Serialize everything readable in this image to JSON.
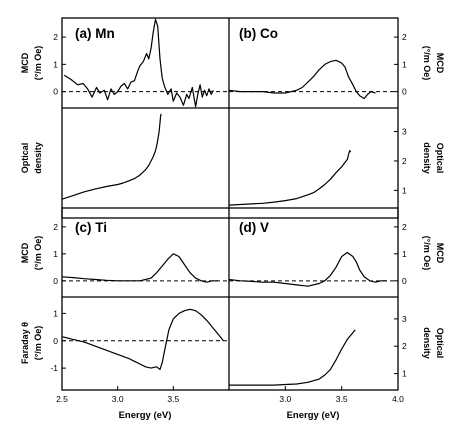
{
  "chart_data": {
    "type": "line",
    "x_axis": {
      "label": "Energy (eV)",
      "left_range": [
        2.5,
        4.0
      ],
      "right_range": [
        2.5,
        4.0
      ],
      "left_ticks": [
        "2.5",
        "3.0",
        "3.5"
      ],
      "right_ticks": [
        "3.0",
        "3.5",
        "4.0"
      ]
    },
    "panels": [
      {
        "id": "a",
        "title": "(a) Mn",
        "mcd": {
          "ylabel": [
            "MCD",
            "(°/m Oe)"
          ],
          "ylim": [
            -0.6,
            2.7
          ],
          "yticks": [
            "0",
            "1",
            "2"
          ],
          "x": [
            2.52,
            2.58,
            2.64,
            2.69,
            2.73,
            2.77,
            2.81,
            2.84,
            2.88,
            2.91,
            2.94,
            2.97,
            3.0,
            3.03,
            3.06,
            3.09,
            3.12,
            3.15,
            3.18,
            3.2,
            3.23,
            3.26,
            3.28,
            3.3,
            3.32,
            3.34,
            3.36,
            3.38,
            3.4,
            3.42,
            3.45,
            3.48,
            3.5,
            3.53,
            3.56,
            3.59,
            3.62,
            3.64,
            3.67,
            3.7,
            3.72,
            3.74,
            3.76,
            3.78,
            3.8,
            3.82,
            3.84,
            3.86
          ],
          "y": [
            0.6,
            0.45,
            0.25,
            0.3,
            0.1,
            -0.2,
            0.15,
            -0.05,
            0.05,
            -0.3,
            0.1,
            -0.1,
            0.0,
            0.2,
            0.3,
            0.1,
            0.35,
            0.4,
            0.75,
            0.95,
            1.1,
            1.4,
            1.2,
            1.6,
            2.2,
            2.65,
            2.4,
            1.2,
            0.5,
            0.2,
            -0.1,
            0.1,
            -0.35,
            -0.05,
            -0.2,
            -0.5,
            -0.1,
            -0.25,
            0.15,
            -0.55,
            -0.1,
            0.25,
            -0.2,
            0.05,
            -0.15,
            0.1,
            -0.1,
            0.05
          ],
          "baseline": 0
        },
        "optical": {
          "ylabel": [
            "Optical",
            "density"
          ],
          "ylim": [
            0.4,
            3.8
          ],
          "yticks": [],
          "x": [
            2.5,
            2.6,
            2.7,
            2.8,
            2.9,
            3.0,
            3.05,
            3.1,
            3.15,
            3.2,
            3.25,
            3.28,
            3.3,
            3.32,
            3.34,
            3.35,
            3.36,
            3.37,
            3.375,
            3.38,
            3.385,
            3.39
          ],
          "y": [
            0.7,
            0.82,
            0.95,
            1.05,
            1.13,
            1.2,
            1.25,
            1.32,
            1.4,
            1.52,
            1.7,
            1.85,
            2.0,
            2.15,
            2.35,
            2.5,
            2.7,
            2.95,
            3.1,
            3.3,
            3.5,
            3.6
          ]
        }
      },
      {
        "id": "b",
        "title": "(b) Co",
        "mcd": {
          "ylabel": [
            "MCD",
            "(°/m Oe)"
          ],
          "ylim": [
            -0.6,
            2.7
          ],
          "yticks": [
            "0",
            "1",
            "2"
          ],
          "x": [
            2.5,
            2.6,
            2.7,
            2.8,
            2.9,
            3.0,
            3.1,
            3.15,
            3.2,
            3.25,
            3.3,
            3.35,
            3.4,
            3.45,
            3.5,
            3.53,
            3.56,
            3.6,
            3.63,
            3.66,
            3.7,
            3.73,
            3.76,
            3.8
          ],
          "y": [
            0.05,
            0.0,
            0.0,
            0.0,
            -0.05,
            -0.05,
            0.05,
            0.15,
            0.35,
            0.55,
            0.8,
            1.0,
            1.1,
            1.15,
            1.05,
            0.9,
            0.55,
            0.25,
            0.0,
            -0.15,
            -0.25,
            -0.1,
            0.0,
            -0.05
          ],
          "baseline": 0
        },
        "optical": {
          "ylabel": [
            "Optical",
            "density"
          ],
          "ylim": [
            0.4,
            3.8
          ],
          "yticks": [
            "1",
            "2",
            "3"
          ],
          "x": [
            2.5,
            2.6,
            2.7,
            2.8,
            2.9,
            3.0,
            3.1,
            3.2,
            3.25,
            3.3,
            3.35,
            3.4,
            3.45,
            3.5,
            3.53,
            3.55,
            3.56,
            3.57,
            3.58
          ],
          "y": [
            0.5,
            0.52,
            0.54,
            0.56,
            0.6,
            0.65,
            0.72,
            0.85,
            0.92,
            1.05,
            1.2,
            1.38,
            1.6,
            1.8,
            1.95,
            2.05,
            2.2,
            2.35,
            2.3
          ]
        }
      },
      {
        "id": "c",
        "title": "(c) Ti",
        "mcd": {
          "ylabel": [
            "MCD",
            "(°/m Oe)"
          ],
          "ylim": [
            -0.6,
            2.7
          ],
          "yticks": [
            "0",
            "1",
            "2"
          ],
          "x": [
            2.5,
            2.6,
            2.7,
            2.8,
            2.9,
            3.0,
            3.1,
            3.2,
            3.25,
            3.3,
            3.35,
            3.4,
            3.45,
            3.5,
            3.55,
            3.6,
            3.65,
            3.7,
            3.75,
            3.8,
            3.85,
            3.9
          ],
          "y": [
            0.15,
            0.12,
            0.08,
            0.05,
            0.02,
            0.0,
            0.0,
            0.0,
            0.05,
            0.1,
            0.3,
            0.55,
            0.8,
            1.0,
            0.9,
            0.6,
            0.3,
            0.1,
            0.0,
            -0.05,
            0.0,
            0.0
          ],
          "baseline": 0
        },
        "optical": {
          "ylabel": [
            "Faraday θ",
            "(°/m Oe)"
          ],
          "ylim": [
            -1.8,
            1.6
          ],
          "yticks": [
            "1",
            "0",
            "-1"
          ],
          "x": [
            2.5,
            2.6,
            2.7,
            2.8,
            2.9,
            3.0,
            3.1,
            3.15,
            3.2,
            3.25,
            3.3,
            3.35,
            3.38,
            3.4,
            3.43,
            3.46,
            3.5,
            3.55,
            3.6,
            3.65,
            3.7,
            3.75,
            3.8,
            3.85,
            3.9,
            3.95
          ],
          "y": [
            0.15,
            0.05,
            -0.05,
            -0.2,
            -0.35,
            -0.5,
            -0.65,
            -0.75,
            -0.85,
            -0.95,
            -1.0,
            -0.95,
            -1.05,
            -0.8,
            -0.2,
            0.4,
            0.8,
            1.0,
            1.1,
            1.15,
            1.1,
            0.95,
            0.75,
            0.5,
            0.25,
            0.0
          ],
          "baseline": 0
        }
      },
      {
        "id": "d",
        "title": "(d) V",
        "mcd": {
          "ylabel": [
            "MCD",
            "(°/m Oe)"
          ],
          "ylim": [
            -0.6,
            2.7
          ],
          "yticks": [
            "0",
            "1",
            "2"
          ],
          "x": [
            2.5,
            2.6,
            2.7,
            2.8,
            2.9,
            3.0,
            3.1,
            3.2,
            3.3,
            3.35,
            3.4,
            3.45,
            3.5,
            3.55,
            3.6,
            3.63,
            3.66,
            3.7,
            3.75,
            3.8,
            3.85,
            3.9
          ],
          "y": [
            0.05,
            0.0,
            -0.02,
            -0.05,
            -0.05,
            -0.1,
            -0.15,
            -0.2,
            -0.1,
            0.0,
            0.2,
            0.5,
            0.9,
            1.05,
            0.9,
            0.7,
            0.4,
            0.15,
            0.0,
            -0.05,
            0.0,
            0.0
          ],
          "baseline": 0
        },
        "optical": {
          "ylabel": [
            "Optical",
            "density"
          ],
          "ylim": [
            0.4,
            3.8
          ],
          "yticks": [
            "1",
            "2",
            "3"
          ],
          "x": [
            2.5,
            2.6,
            2.7,
            2.8,
            2.9,
            3.0,
            3.1,
            3.2,
            3.3,
            3.35,
            3.4,
            3.45,
            3.5,
            3.55,
            3.6,
            3.62
          ],
          "y": [
            0.58,
            0.58,
            0.58,
            0.58,
            0.58,
            0.6,
            0.62,
            0.68,
            0.8,
            0.95,
            1.15,
            1.5,
            1.9,
            2.25,
            2.5,
            2.6
          ]
        }
      }
    ]
  }
}
